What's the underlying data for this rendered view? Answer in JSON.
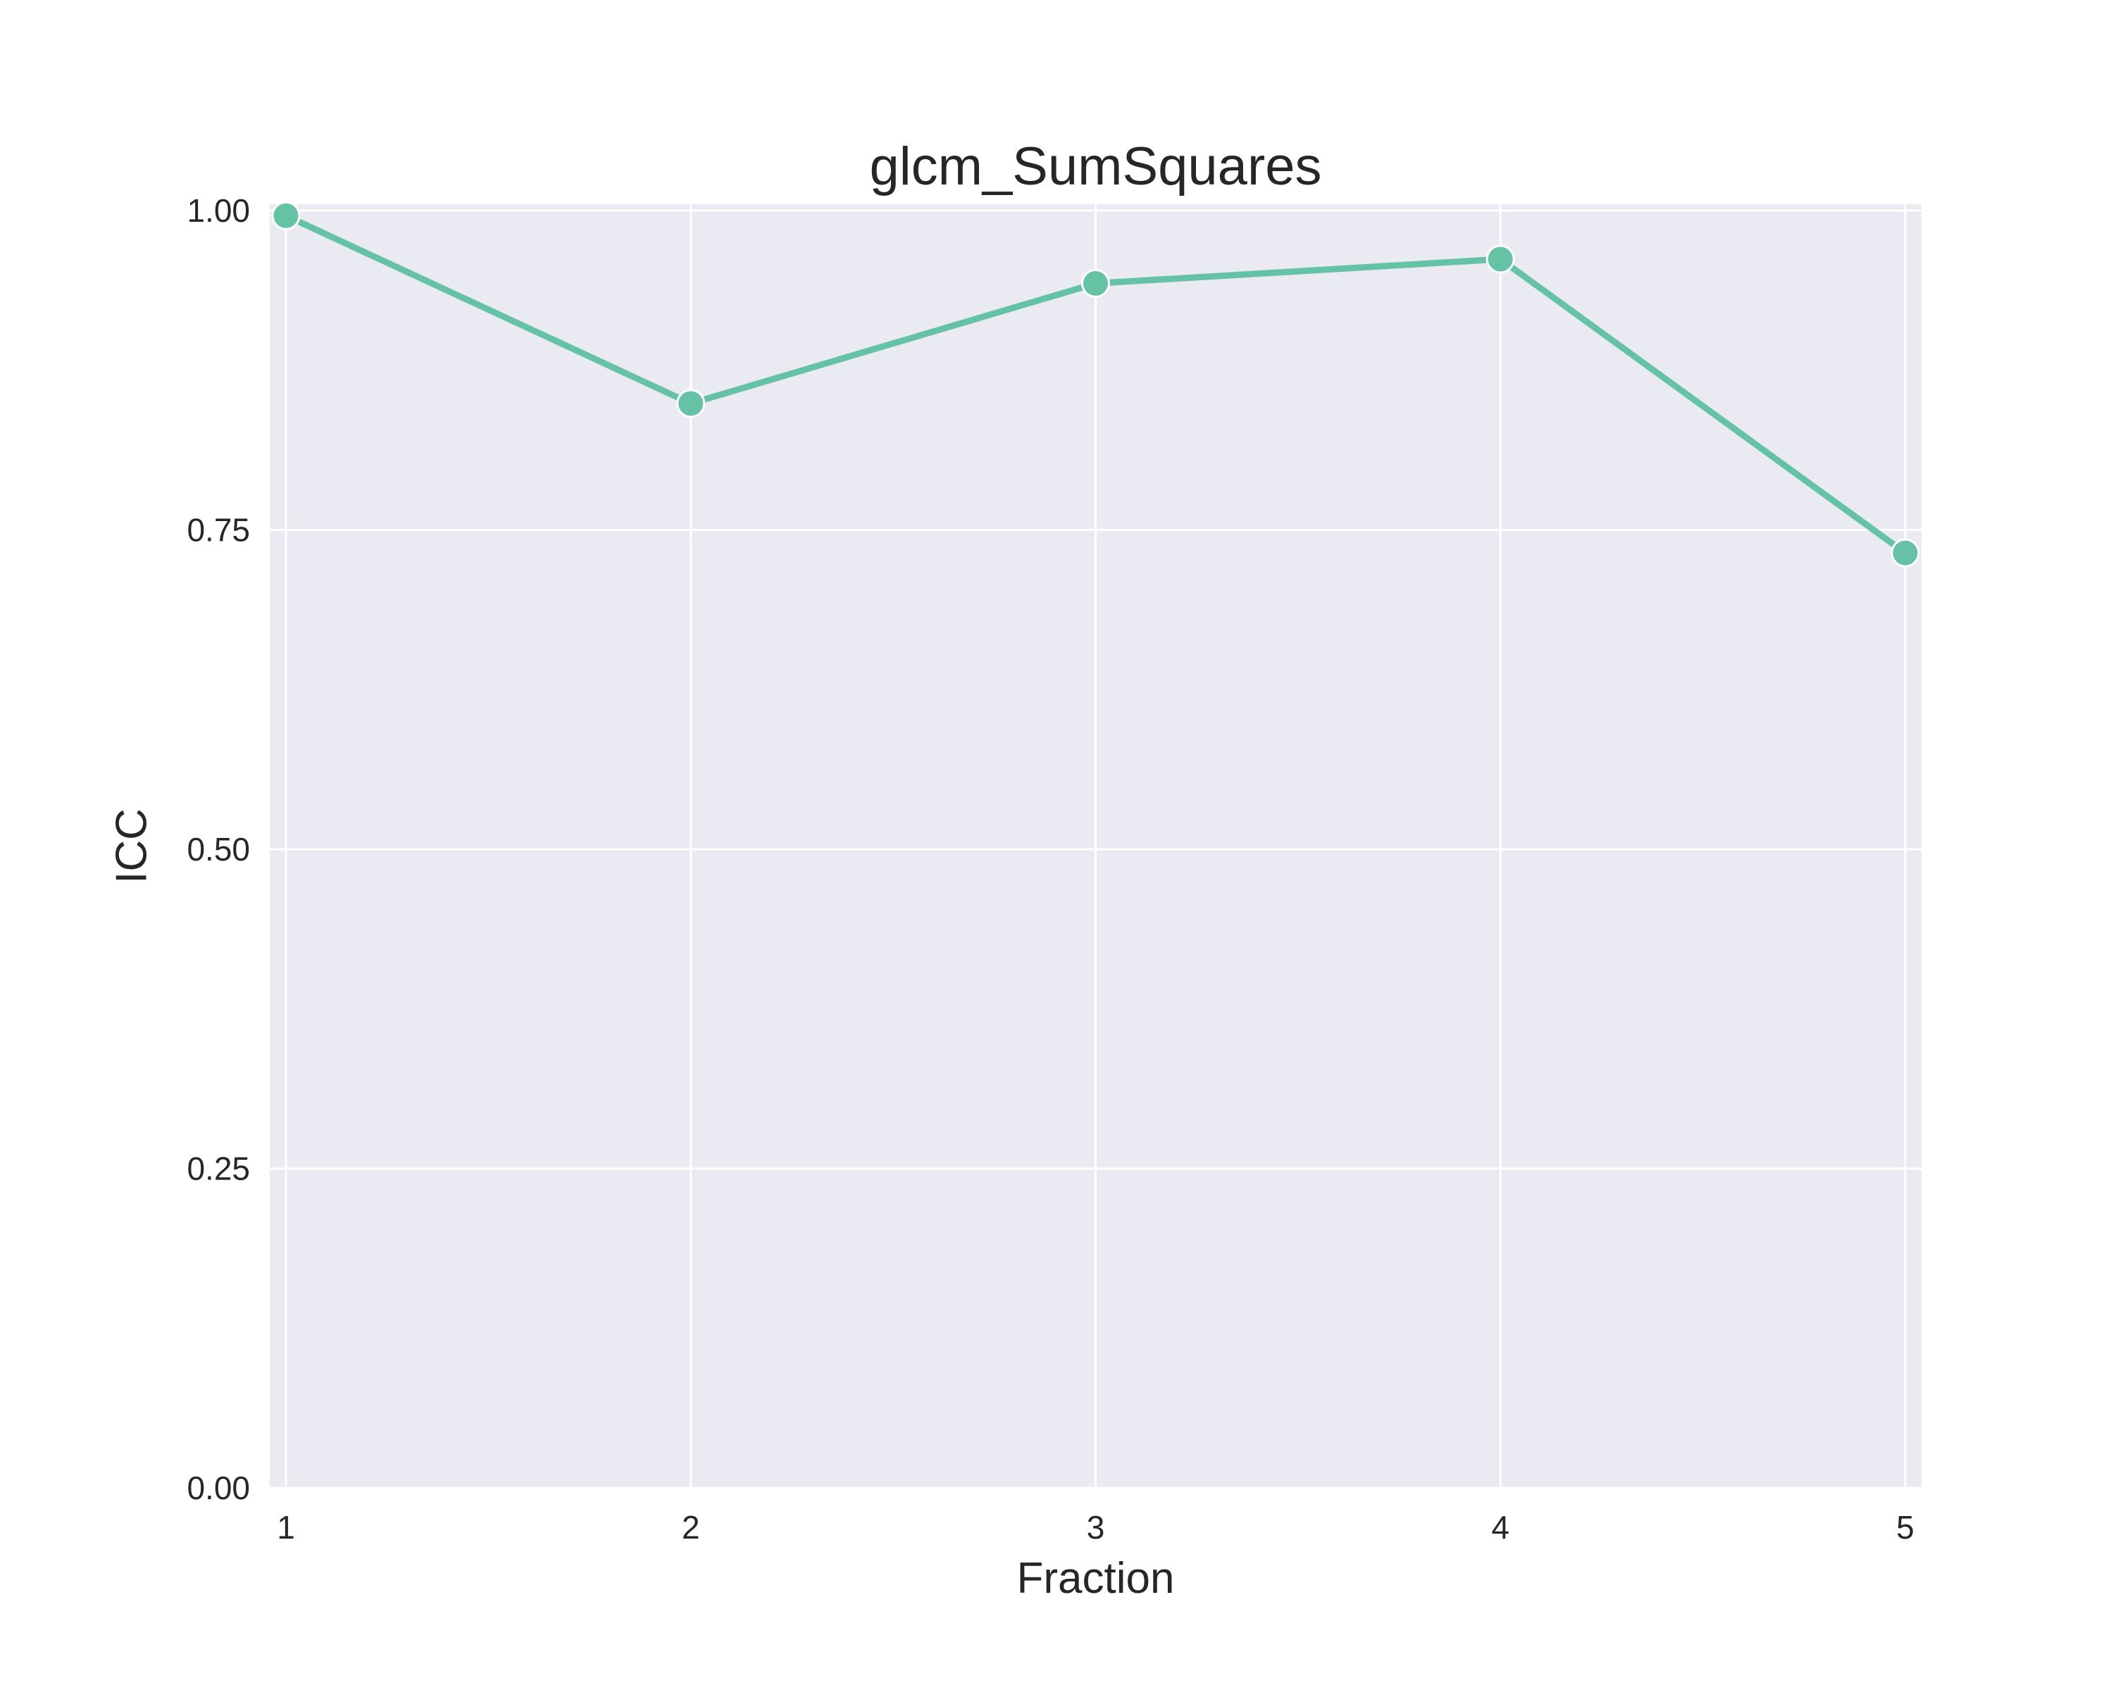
{
  "chart_data": {
    "type": "line",
    "title": "glcm_SumSquares",
    "xlabel": "Fraction",
    "ylabel": "ICC",
    "x": [
      1,
      2,
      3,
      4,
      5
    ],
    "x_tick_labels": [
      "1",
      "2",
      "3",
      "4",
      "5"
    ],
    "y_ticks": [
      0.0,
      0.25,
      0.5,
      0.75,
      1.0
    ],
    "y_tick_labels": [
      "0.00",
      "0.25",
      "0.50",
      "0.75",
      "1.00"
    ],
    "xlim": [
      0.96,
      5.04
    ],
    "ylim": [
      0.0,
      1.005
    ],
    "grid": true,
    "series": [
      {
        "name": "ICC",
        "values": [
          0.996,
          0.849,
          0.943,
          0.962,
          0.732
        ],
        "color": "#66c2a5"
      }
    ],
    "colors": {
      "plot_background": "#eaeaf2",
      "grid": "#ffffff",
      "text": "#262626"
    }
  }
}
